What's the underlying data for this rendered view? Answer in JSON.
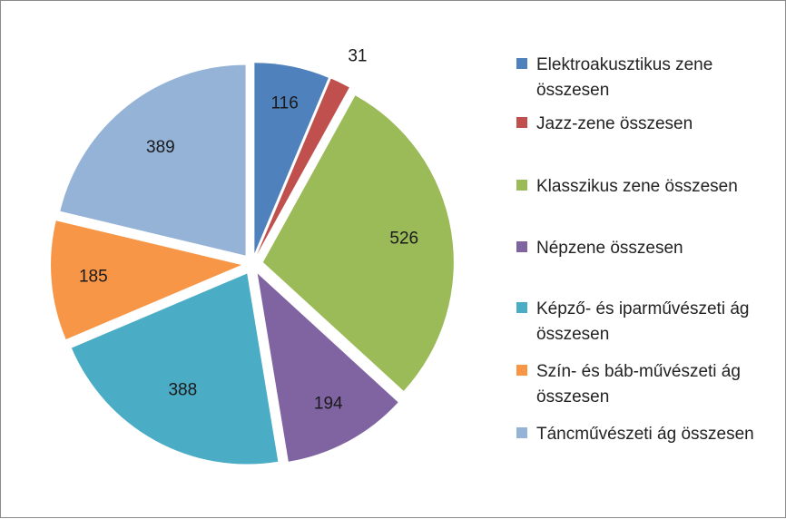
{
  "chart_data": {
    "type": "pie",
    "title": "",
    "exploded": true,
    "legend_position": "right",
    "categories": [
      "Elektroakusztikus zene összesen",
      "Jazz-zene összesen",
      "Klasszikus zene összesen",
      "Népzene összesen",
      "Képző- és iparművészeti ág összesen",
      "Szín- és báb-művészeti ág összesen",
      "Táncművészeti ág összesen"
    ],
    "values": [
      116,
      31,
      526,
      194,
      388,
      185,
      389
    ],
    "data_labels": [
      "116",
      "31",
      "526",
      "194",
      "388",
      "185",
      "389"
    ],
    "colors": [
      "#4F81BD",
      "#C0504D",
      "#9BBB59",
      "#8064A2",
      "#4BACC6",
      "#F79646",
      "#95B3D7"
    ]
  }
}
